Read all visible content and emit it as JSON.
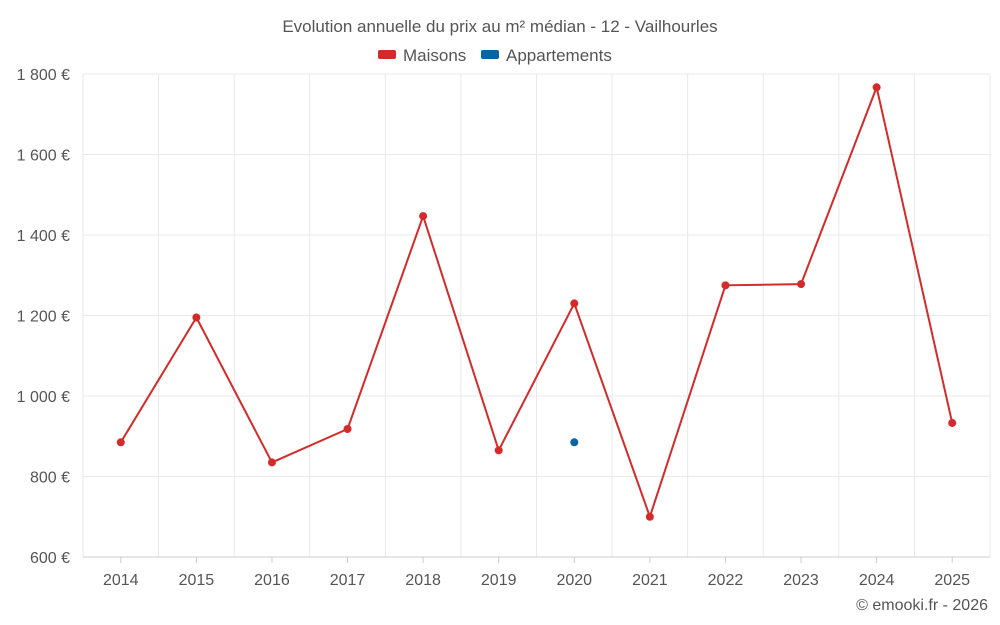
{
  "chart_data": {
    "type": "line",
    "title": "Evolution annuelle du prix au m² médian - 12 - Vailhourles",
    "credit": "© emooki.fr - 2026",
    "categories": [
      "2014",
      "2015",
      "2016",
      "2017",
      "2018",
      "2019",
      "2020",
      "2021",
      "2022",
      "2023",
      "2024",
      "2025"
    ],
    "series": [
      {
        "name": "Maisons",
        "color": "#d42a2a",
        "values": [
          885,
          1195,
          835,
          918,
          1447,
          865,
          1230,
          700,
          1275,
          1278,
          1767,
          933
        ]
      },
      {
        "name": "Appartements",
        "color": "#0b63a0",
        "values": [
          null,
          null,
          null,
          null,
          null,
          null,
          885,
          null,
          null,
          null,
          null,
          null
        ]
      }
    ],
    "ylim": [
      600,
      1800
    ],
    "yticks": [
      600,
      800,
      1000,
      1200,
      1400,
      1600,
      1800
    ],
    "ytick_labels": [
      "600 €",
      "800 €",
      "1 000 €",
      "1 200 €",
      "1 400 €",
      "1 600 €",
      "1 800 €"
    ],
    "grid": true,
    "legend_position": "top-center"
  }
}
